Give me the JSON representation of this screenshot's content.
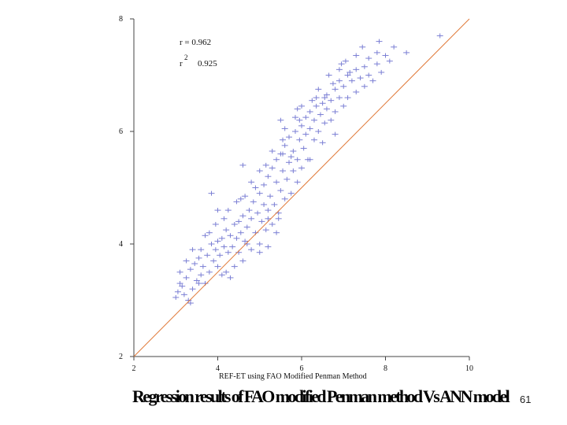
{
  "slide": {
    "caption": "Regression results of FAO modified Penman method Vs ANN model",
    "page_number": "61"
  },
  "chart_data": {
    "type": "scatter",
    "xlabel": "REF-ET using FAO Modified Penman Method",
    "ylabel": "",
    "xlim": [
      2,
      10
    ],
    "ylim": [
      2,
      8
    ],
    "x_ticks": [
      "2",
      "4",
      "6",
      "8",
      "10"
    ],
    "y_ticks": [
      "2",
      "4",
      "6",
      "8"
    ],
    "annotations": {
      "r": "r = 0.962",
      "r2_label": "r",
      "r2_sup": "2",
      "r2_value": "0.925"
    },
    "reference_line": {
      "from": [
        2,
        2
      ],
      "to": [
        10,
        8
      ],
      "color": "#e07a3a"
    },
    "marker_color": "#7b7fd4",
    "points": [
      [
        3.0,
        3.05
      ],
      [
        3.05,
        3.15
      ],
      [
        3.1,
        3.3
      ],
      [
        3.2,
        3.1
      ],
      [
        3.25,
        3.4
      ],
      [
        3.3,
        3.0
      ],
      [
        3.35,
        3.55
      ],
      [
        3.4,
        3.2
      ],
      [
        3.45,
        3.65
      ],
      [
        3.5,
        3.35
      ],
      [
        3.55,
        3.75
      ],
      [
        3.6,
        3.45
      ],
      [
        3.6,
        3.9
      ],
      [
        3.65,
        3.6
      ],
      [
        3.7,
        3.3
      ],
      [
        3.75,
        3.8
      ],
      [
        3.8,
        3.5
      ],
      [
        3.85,
        4.0
      ],
      [
        3.9,
        3.7
      ],
      [
        3.95,
        3.9
      ],
      [
        4.0,
        3.6
      ],
      [
        4.0,
        4.05
      ],
      [
        4.05,
        3.8
      ],
      [
        4.1,
        4.1
      ],
      [
        4.15,
        3.95
      ],
      [
        4.2,
        3.5
      ],
      [
        4.2,
        4.25
      ],
      [
        4.25,
        3.85
      ],
      [
        4.3,
        4.15
      ],
      [
        4.35,
        3.95
      ],
      [
        4.4,
        4.35
      ],
      [
        4.4,
        3.6
      ],
      [
        4.45,
        4.1
      ],
      [
        4.5,
        3.85
      ],
      [
        4.5,
        4.4
      ],
      [
        4.55,
        4.2
      ],
      [
        4.6,
        3.7
      ],
      [
        4.6,
        4.5
      ],
      [
        4.65,
        4.05
      ],
      [
        4.7,
        4.3
      ],
      [
        4.75,
        4.6
      ],
      [
        4.8,
        3.9
      ],
      [
        4.8,
        4.45
      ],
      [
        4.85,
        4.75
      ],
      [
        4.9,
        4.2
      ],
      [
        4.95,
        4.55
      ],
      [
        5.0,
        4.9
      ],
      [
        5.0,
        4.0
      ],
      [
        5.05,
        4.4
      ],
      [
        5.1,
        4.7
      ],
      [
        5.1,
        5.05
      ],
      [
        5.15,
        4.25
      ],
      [
        5.2,
        4.6
      ],
      [
        5.2,
        5.2
      ],
      [
        5.25,
        4.85
      ],
      [
        5.3,
        4.35
      ],
      [
        5.3,
        5.35
      ],
      [
        5.35,
        4.7
      ],
      [
        5.4,
        5.1
      ],
      [
        5.4,
        5.5
      ],
      [
        5.45,
        4.55
      ],
      [
        5.5,
        4.95
      ],
      [
        5.5,
        5.6
      ],
      [
        5.55,
        5.3
      ],
      [
        5.6,
        4.8
      ],
      [
        5.6,
        5.75
      ],
      [
        5.65,
        5.15
      ],
      [
        5.7,
        5.45
      ],
      [
        5.7,
        5.9
      ],
      [
        5.75,
        4.9
      ],
      [
        5.8,
        5.3
      ],
      [
        5.8,
        5.65
      ],
      [
        5.85,
        6.0
      ],
      [
        5.9,
        5.1
      ],
      [
        5.9,
        5.5
      ],
      [
        5.95,
        5.85
      ],
      [
        6.0,
        5.35
      ],
      [
        6.0,
        6.1
      ],
      [
        6.05,
        5.7
      ],
      [
        6.1,
        5.95
      ],
      [
        6.1,
        6.25
      ],
      [
        6.15,
        5.5
      ],
      [
        6.2,
        6.05
      ],
      [
        6.2,
        6.35
      ],
      [
        6.3,
        5.85
      ],
      [
        6.3,
        6.2
      ],
      [
        6.35,
        6.45
      ],
      [
        6.4,
        6.0
      ],
      [
        6.45,
        6.3
      ],
      [
        6.5,
        5.8
      ],
      [
        6.5,
        6.5
      ],
      [
        6.55,
        6.15
      ],
      [
        6.6,
        6.4
      ],
      [
        6.6,
        6.65
      ],
      [
        6.7,
        6.2
      ],
      [
        6.7,
        6.55
      ],
      [
        6.8,
        6.75
      ],
      [
        6.8,
        6.35
      ],
      [
        6.9,
        6.6
      ],
      [
        6.9,
        6.9
      ],
      [
        7.0,
        6.45
      ],
      [
        7.0,
        6.8
      ],
      [
        7.1,
        7.0
      ],
      [
        7.1,
        6.6
      ],
      [
        7.2,
        6.9
      ],
      [
        7.3,
        7.1
      ],
      [
        7.3,
        6.7
      ],
      [
        7.4,
        6.95
      ],
      [
        7.5,
        7.15
      ],
      [
        7.5,
        6.8
      ],
      [
        7.6,
        7.0
      ],
      [
        7.6,
        7.3
      ],
      [
        7.7,
        6.9
      ],
      [
        7.8,
        7.2
      ],
      [
        7.8,
        7.4
      ],
      [
        7.9,
        7.05
      ],
      [
        8.0,
        7.35
      ],
      [
        8.1,
        7.25
      ],
      [
        8.2,
        7.5
      ],
      [
        8.5,
        7.4
      ],
      [
        9.3,
        7.7
      ],
      [
        3.1,
        3.5
      ],
      [
        3.4,
        3.9
      ],
      [
        3.8,
        4.2
      ],
      [
        4.15,
        4.45
      ],
      [
        4.3,
        3.4
      ],
      [
        4.7,
        4.0
      ],
      [
        5.0,
        5.3
      ],
      [
        5.3,
        5.65
      ],
      [
        5.6,
        6.05
      ],
      [
        6.0,
        6.45
      ],
      [
        6.4,
        6.75
      ],
      [
        6.9,
        7.1
      ],
      [
        7.3,
        7.35
      ],
      [
        3.95,
        4.35
      ],
      [
        4.55,
        4.8
      ],
      [
        5.45,
        4.45
      ],
      [
        5.2,
        4.45
      ],
      [
        4.9,
        5.0
      ],
      [
        5.75,
        5.55
      ],
      [
        6.25,
        6.55
      ],
      [
        6.65,
        7.0
      ],
      [
        7.05,
        7.25
      ],
      [
        7.45,
        7.5
      ],
      [
        7.85,
        7.6
      ],
      [
        3.25,
        3.7
      ],
      [
        3.7,
        4.15
      ],
      [
        4.25,
        4.6
      ],
      [
        4.65,
        4.85
      ],
      [
        5.15,
        5.4
      ],
      [
        5.55,
        5.85
      ],
      [
        5.95,
        6.2
      ],
      [
        6.35,
        6.6
      ],
      [
        6.75,
        6.85
      ],
      [
        7.15,
        7.05
      ],
      [
        5.0,
        3.85
      ],
      [
        4.8,
        5.1
      ],
      [
        5.5,
        6.2
      ],
      [
        5.2,
        3.95
      ],
      [
        4.0,
        4.6
      ],
      [
        4.1,
        3.45
      ],
      [
        3.55,
        3.3
      ],
      [
        3.35,
        2.95
      ],
      [
        3.15,
        3.25
      ],
      [
        4.45,
        4.75
      ],
      [
        5.85,
        6.25
      ],
      [
        6.55,
        6.6
      ],
      [
        5.9,
        6.4
      ],
      [
        4.6,
        5.4
      ],
      [
        6.2,
        5.5
      ],
      [
        3.85,
        4.9
      ],
      [
        5.55,
        5.6
      ],
      [
        6.8,
        5.95
      ],
      [
        6.95,
        7.2
      ],
      [
        5.4,
        4.2
      ]
    ]
  }
}
